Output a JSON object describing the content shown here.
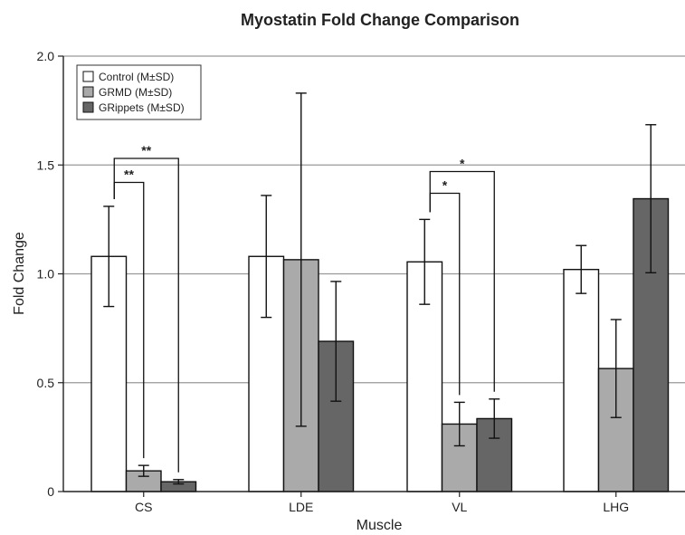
{
  "chart_data": {
    "type": "bar",
    "title": "Myostatin Fold Change Comparison",
    "xlabel": "Muscle",
    "ylabel": "Fold Change",
    "ylim": [
      0,
      2.0
    ],
    "yticks": [
      "0",
      "0.5",
      "1.0",
      "1.5",
      "2.0"
    ],
    "ytick_values": [
      0,
      0.5,
      1.0,
      1.5,
      2.0
    ],
    "grid": true,
    "legend_position": "top-left",
    "categories": [
      "CS",
      "LDE",
      "VL",
      "LHG"
    ],
    "series": [
      {
        "name": "Control (M±SD)",
        "color": "#ffffff",
        "values": [
          1.08,
          1.08,
          1.055,
          1.02
        ],
        "errors": [
          0.23,
          0.28,
          0.195,
          0.11
        ]
      },
      {
        "name": "GRMD (M±SD)",
        "color": "#aaaaaa",
        "values": [
          0.095,
          1.065,
          0.31,
          0.565
        ],
        "errors": [
          0.025,
          0.765,
          0.1,
          0.225
        ]
      },
      {
        "name": "GRippets (M±SD)",
        "color": "#666666",
        "values": [
          0.045,
          0.69,
          0.335,
          1.345
        ],
        "errors": [
          0.01,
          0.275,
          0.09,
          0.34
        ]
      }
    ],
    "significance": [
      {
        "category": 0,
        "from_series": 0,
        "to_series": 1,
        "label": "**",
        "level": 1.42
      },
      {
        "category": 0,
        "from_series": 0,
        "to_series": 2,
        "label": "**",
        "level": 1.53
      },
      {
        "category": 2,
        "from_series": 0,
        "to_series": 1,
        "label": "*",
        "level": 1.37
      },
      {
        "category": 2,
        "from_series": 0,
        "to_series": 2,
        "label": "*",
        "level": 1.47
      }
    ]
  }
}
